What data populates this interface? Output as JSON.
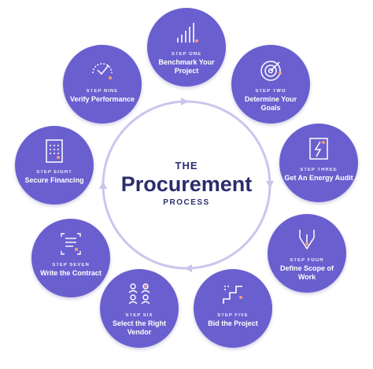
{
  "colors": {
    "circle_fill": "#6a5fcf",
    "ring_stroke": "#c9c6ee",
    "title_text": "#2b2d6e",
    "accent_dot": "#f0a07a"
  },
  "center": {
    "line1": "THE",
    "line2": "Procurement",
    "line3": "PROCESS"
  },
  "steps": [
    {
      "number": "STEP ONE",
      "title": "Benchmark Your Project",
      "icon": "bar-chart-icon"
    },
    {
      "number": "STEP TWO",
      "title": "Determine Your Goals",
      "icon": "target-icon"
    },
    {
      "number": "STEP THREE",
      "title": "Get An Energy Audit",
      "icon": "energy-audit-icon"
    },
    {
      "number": "STEP FOUR",
      "title": "Define Scope of Work",
      "icon": "pen-nib-icon"
    },
    {
      "number": "STEP FIVE",
      "title": "Bid the Project",
      "icon": "stairs-icon"
    },
    {
      "number": "STEP SIX",
      "title": "Select the Right Vendor",
      "icon": "people-icon"
    },
    {
      "number": "STEP SEVEN",
      "title": "Write the Contract",
      "icon": "document-icon"
    },
    {
      "number": "STEP EIGHT",
      "title": "Secure Financing",
      "icon": "calculator-icon"
    },
    {
      "number": "STEP NINE",
      "title": "Verify Performance",
      "icon": "check-gauge-icon"
    }
  ]
}
